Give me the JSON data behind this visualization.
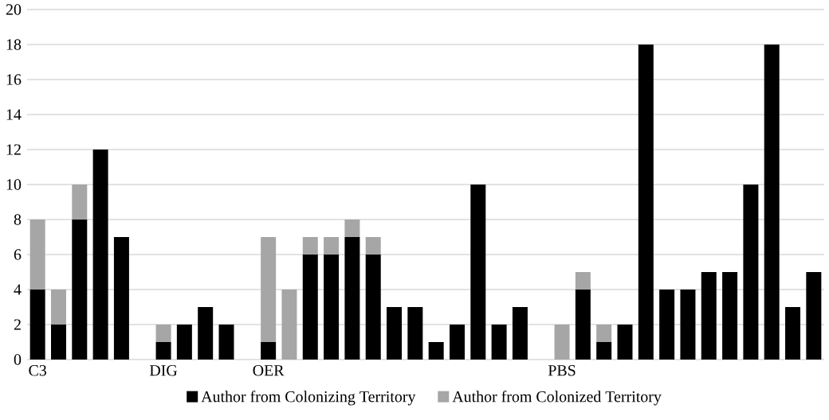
{
  "chart_data": {
    "type": "bar",
    "stacked": true,
    "categories": [
      "C3",
      null,
      null,
      null,
      null,
      null,
      "DIG",
      null,
      null,
      null,
      null,
      "OER",
      null,
      null,
      null,
      null,
      null,
      null,
      null,
      null,
      null,
      null,
      null,
      null,
      null,
      "PBS",
      null,
      null,
      null,
      null,
      null,
      null,
      null,
      null,
      null,
      null,
      null,
      null
    ],
    "series": [
      {
        "name": "Author from Colonizing Territory",
        "color": "#000000",
        "values": [
          4,
          2,
          8,
          12,
          7,
          0,
          1,
          2,
          3,
          2,
          0,
          1,
          0,
          6,
          6,
          7,
          6,
          3,
          3,
          1,
          2,
          10,
          2,
          3,
          0,
          0,
          4,
          1,
          2,
          18,
          4,
          4,
          5,
          5,
          10,
          18,
          3,
          5
        ]
      },
      {
        "name": "Author from Colonized Territory",
        "color": "#a6a6a6",
        "values": [
          4,
          2,
          2,
          0,
          0,
          0,
          1,
          0,
          0,
          0,
          0,
          6,
          4,
          1,
          1,
          1,
          1,
          0,
          0,
          0,
          0,
          0,
          0,
          0,
          0,
          2,
          1,
          1,
          0,
          0,
          0,
          0,
          0,
          0,
          0,
          0,
          0,
          0
        ]
      }
    ],
    "ylim": [
      0,
      20
    ],
    "yticks": [
      0,
      2,
      4,
      6,
      8,
      10,
      12,
      14,
      16,
      18,
      20
    ],
    "grid": "y",
    "legend": "bottom"
  }
}
